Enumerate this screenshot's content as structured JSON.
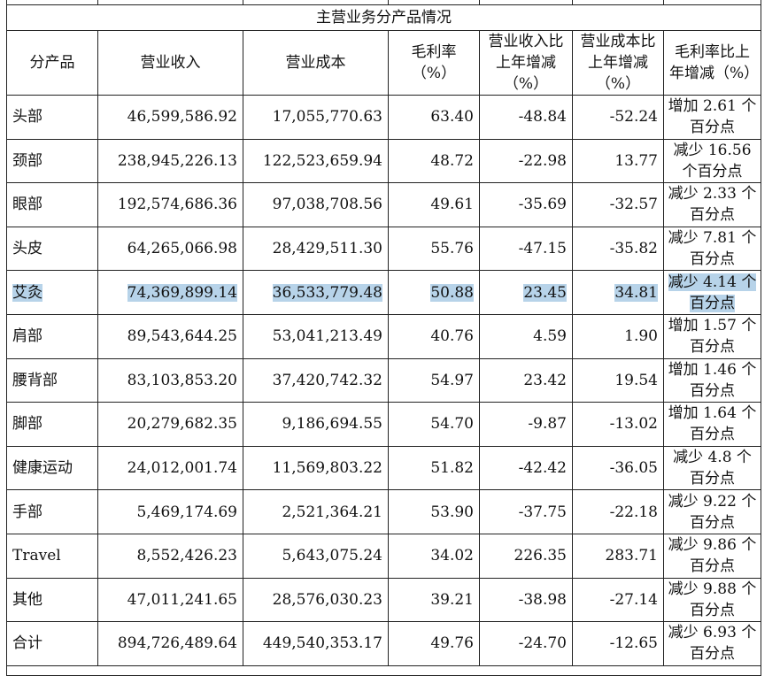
{
  "table": {
    "section_title": "主营业务分产品情况",
    "headers": [
      "分产品",
      "营业收入",
      "营业成本",
      "毛利率（%）",
      "营业收入比上年增减（%）",
      "营业成本比上年增减（%）",
      "毛利率比上年增减（%）"
    ],
    "rows": [
      {
        "name": "头部",
        "revenue": "46,599,586.92",
        "cost": "17,055,770.63",
        "margin": "63.40",
        "rev_change": "-48.84",
        "cost_change": "-52.24",
        "margin_change": "增加 2.61 个百分点"
      },
      {
        "name": "颈部",
        "revenue": "238,945,226.13",
        "cost": "122,523,659.94",
        "margin": "48.72",
        "rev_change": "-22.98",
        "cost_change": "13.77",
        "margin_change": "减少 16.56 个百分点"
      },
      {
        "name": "眼部",
        "revenue": "192,574,686.36",
        "cost": "97,038,708.56",
        "margin": "49.61",
        "rev_change": "-35.69",
        "cost_change": "-32.57",
        "margin_change": "减少 2.33 个百分点"
      },
      {
        "name": "头皮",
        "revenue": "64,265,066.98",
        "cost": "28,429,511.30",
        "margin": "55.76",
        "rev_change": "-47.15",
        "cost_change": "-35.82",
        "margin_change": "减少 7.81 个百分点"
      },
      {
        "name": "艾灸",
        "revenue": "74,369,899.14",
        "cost": "36,533,779.48",
        "margin": "50.88",
        "rev_change": "23.45",
        "cost_change": "34.81",
        "margin_change": "减少 4.14 个百分点",
        "highlighted": true
      },
      {
        "name": "肩部",
        "revenue": "89,543,644.25",
        "cost": "53,041,213.49",
        "margin": "40.76",
        "rev_change": "4.59",
        "cost_change": "1.90",
        "margin_change": "增加 1.57 个百分点"
      },
      {
        "name": "腰背部",
        "revenue": "83,103,853.20",
        "cost": "37,420,742.32",
        "margin": "54.97",
        "rev_change": "23.42",
        "cost_change": "19.54",
        "margin_change": "增加 1.46 个百分点"
      },
      {
        "name": "脚部",
        "revenue": "20,279,682.35",
        "cost": "9,186,694.55",
        "margin": "54.70",
        "rev_change": "-9.87",
        "cost_change": "-13.02",
        "margin_change": "增加 1.64 个百分点"
      },
      {
        "name": "健康运动",
        "revenue": "24,012,001.74",
        "cost": "11,569,803.22",
        "margin": "51.82",
        "rev_change": "-42.42",
        "cost_change": "-36.05",
        "margin_change": "减少 4.8 个百分点"
      },
      {
        "name": "手部",
        "revenue": "5,469,174.69",
        "cost": "2,521,364.21",
        "margin": "53.90",
        "rev_change": "-37.75",
        "cost_change": "-22.18",
        "margin_change": "减少 9.22 个百分点"
      },
      {
        "name": "Travel",
        "revenue": "8,552,426.23",
        "cost": "5,643,075.24",
        "margin": "34.02",
        "rev_change": "226.35",
        "cost_change": "283.71",
        "margin_change": "减少 9.86 个百分点"
      },
      {
        "name": "其他",
        "revenue": "47,011,241.65",
        "cost": "28,576,030.23",
        "margin": "39.21",
        "rev_change": "-38.98",
        "cost_change": "-27.14",
        "margin_change": "减少 9.88 个百分点"
      },
      {
        "name": "合计",
        "revenue": "894,726,489.64",
        "cost": "449,540,353.17",
        "margin": "49.76",
        "rev_change": "-24.70",
        "cost_change": "-12.65",
        "margin_change": "减少 6.93 个百分点"
      }
    ]
  },
  "colors": {
    "highlight": "#b7d3e9",
    "border": "#222222"
  }
}
